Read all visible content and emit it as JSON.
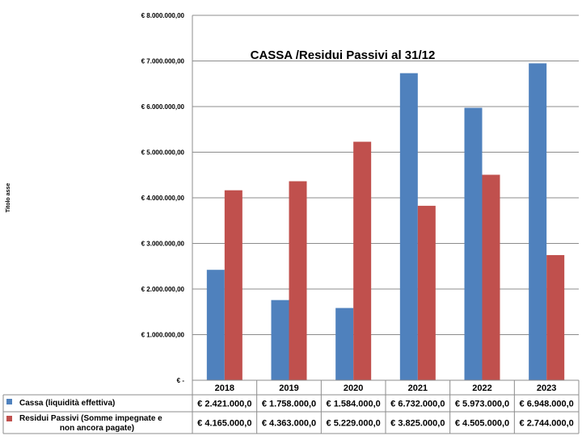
{
  "chart_data": {
    "type": "bar",
    "title": "CASSA /Residui Passivi al 31/12",
    "ylabel": "Titolo asse",
    "xlabel": "",
    "categories": [
      "2018",
      "2019",
      "2020",
      "2021",
      "2022",
      "2023"
    ],
    "ylim": [
      0,
      8000000
    ],
    "ytick_values": [
      0,
      1000000,
      2000000,
      3000000,
      4000000,
      5000000,
      6000000,
      7000000,
      8000000
    ],
    "ytick_labels": [
      "€ -",
      "€ 1.000.000,00",
      "€ 2.000.000,00",
      "€ 3.000.000,00",
      "€ 4.000.000,00",
      "€ 5.000.000,00",
      "€ 6.000.000,00",
      "€ 7.000.000,00",
      "€ 8.000.000,00"
    ],
    "grid": true,
    "legend_position": "bottom data table",
    "series": [
      {
        "name": "Cassa (liquidità effettiva)",
        "color": "#4F81BD",
        "values": [
          2421000,
          1758000,
          1584000,
          6732000,
          5973000,
          6948000
        ],
        "table_values": [
          "€ 2.421.000,0",
          "€ 1.758.000,0",
          "€ 1.584.000,0",
          "€ 6.732.000,0",
          "€ 5.973.000,0",
          "€ 6.948.000,0"
        ]
      },
      {
        "name": "Residui Passivi (Somme impegnate e non ancora pagate)",
        "name_lines": [
          "Residui Passivi (Somme impegnate e",
          "non ancora pagate)"
        ],
        "color": "#C0504D",
        "values": [
          4165000,
          4363000,
          5229000,
          3825000,
          4505000,
          2744000
        ],
        "table_values": [
          "€ 4.165.000,0",
          "€ 4.363.000,0",
          "€ 5.229.000,0",
          "€ 3.825.000,0",
          "€ 4.505.000,0",
          "€ 2.744.000,0"
        ]
      }
    ]
  }
}
